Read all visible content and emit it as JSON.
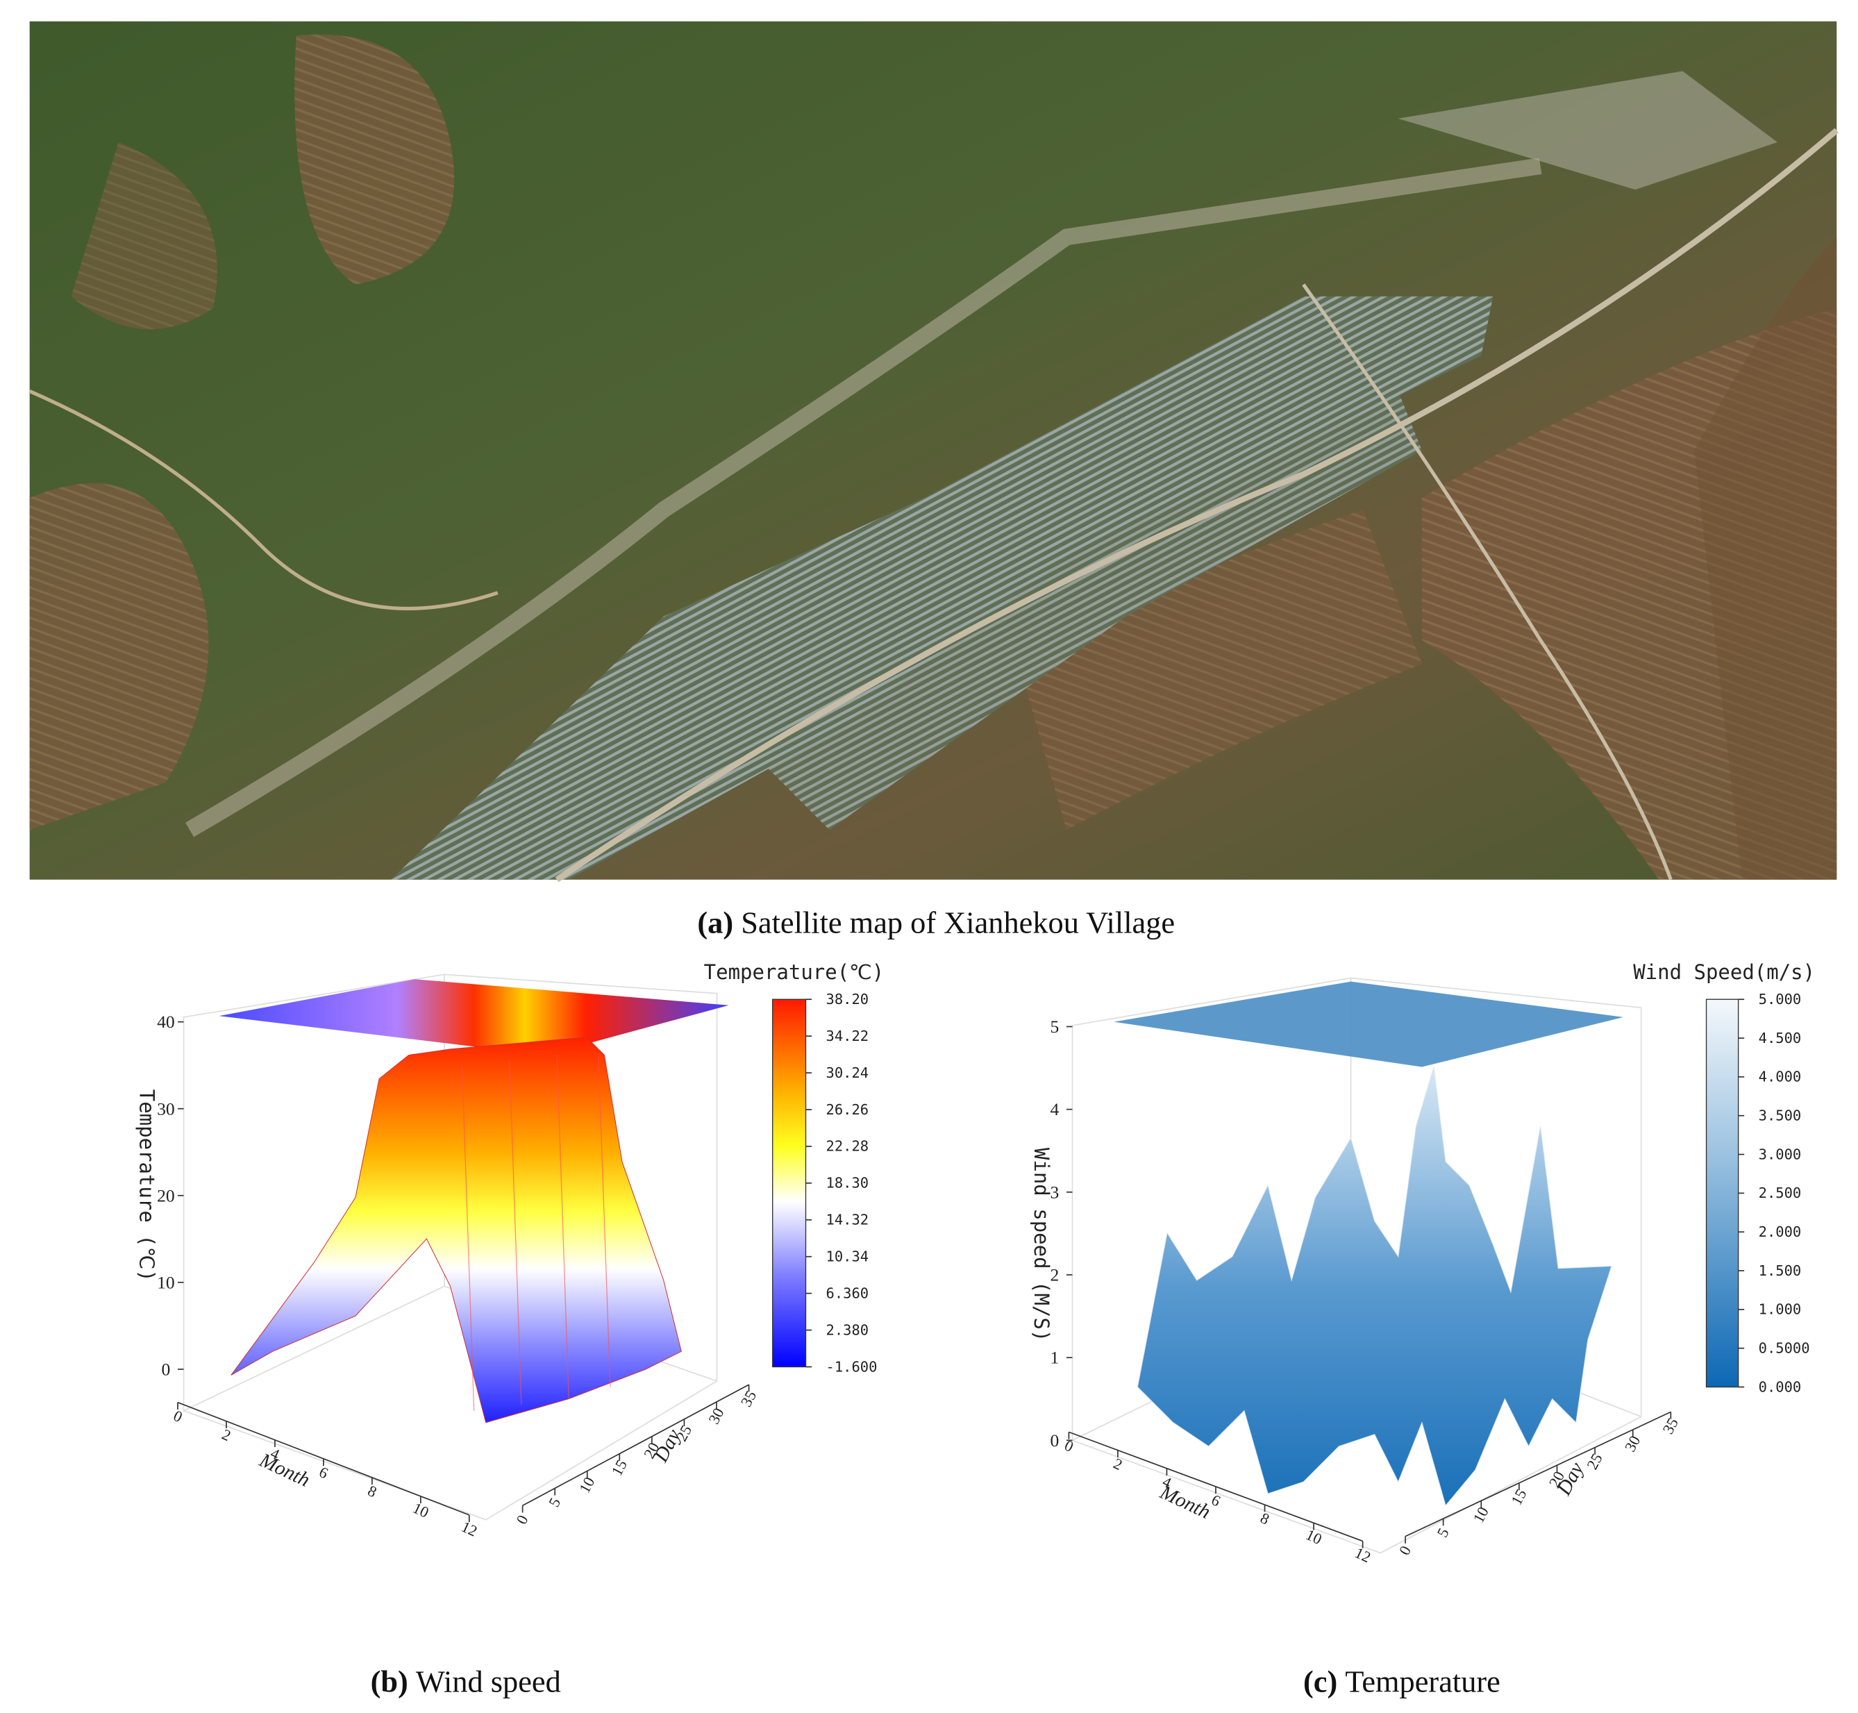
{
  "figure": {
    "panels": [
      {
        "label": "(a)",
        "caption": "Satellite map of Xianhekou Village"
      },
      {
        "label": "(b)",
        "caption": "Wind speed",
        "colorbar_title": "Temperature(℃)",
        "colorbar_ticks": [
          {
            "value": 38.2,
            "label": "38.20"
          },
          {
            "value": 34.22,
            "label": "34.22"
          },
          {
            "value": 30.24,
            "label": "30.24"
          },
          {
            "value": 26.26,
            "label": "26.26"
          },
          {
            "value": 22.28,
            "label": "22.28"
          },
          {
            "value": 18.3,
            "label": "18.30"
          },
          {
            "value": 14.32,
            "label": "14.32"
          },
          {
            "value": 10.34,
            "label": "10.34"
          },
          {
            "value": 6.36,
            "label": "6.360"
          },
          {
            "value": 2.38,
            "label": "2.380"
          },
          {
            "value": -1.6,
            "label": "-1.600"
          }
        ],
        "z_axis_label": "Temperature (℃)",
        "z_ticks": [
          0,
          10,
          20,
          30,
          40
        ],
        "x_axis_label": "Month",
        "x_ticks": [
          0,
          2,
          4,
          6,
          8,
          10,
          12
        ],
        "y_axis_label": "Day",
        "y_ticks": [
          0,
          5,
          10,
          15,
          20,
          25,
          30,
          35
        ]
      },
      {
        "label": "(c)",
        "caption": "Temperature",
        "colorbar_title": "Wind Speed(m/s)",
        "colorbar_ticks": [
          {
            "value": 5,
            "label": "5.000"
          },
          {
            "value": 4.5,
            "label": "4.500"
          },
          {
            "value": 4,
            "label": "4.000"
          },
          {
            "value": 3.5,
            "label": "3.500"
          },
          {
            "value": 3,
            "label": "3.000"
          },
          {
            "value": 2.5,
            "label": "2.500"
          },
          {
            "value": 2,
            "label": "2.000"
          },
          {
            "value": 1.5,
            "label": "1.500"
          },
          {
            "value": 1,
            "label": "1.000"
          },
          {
            "value": 0.5,
            "label": "0.5000"
          },
          {
            "value": 0,
            "label": "0.000"
          }
        ],
        "z_axis_label": "Wind speed (M/S)",
        "z_ticks": [
          0,
          1,
          2,
          3,
          4,
          5
        ],
        "x_axis_label": "Month",
        "x_ticks": [
          0,
          2,
          4,
          6,
          8,
          10,
          12
        ],
        "y_axis_label": "Day",
        "y_ticks": [
          0,
          5,
          10,
          15,
          20,
          25,
          30,
          35
        ]
      }
    ]
  }
}
